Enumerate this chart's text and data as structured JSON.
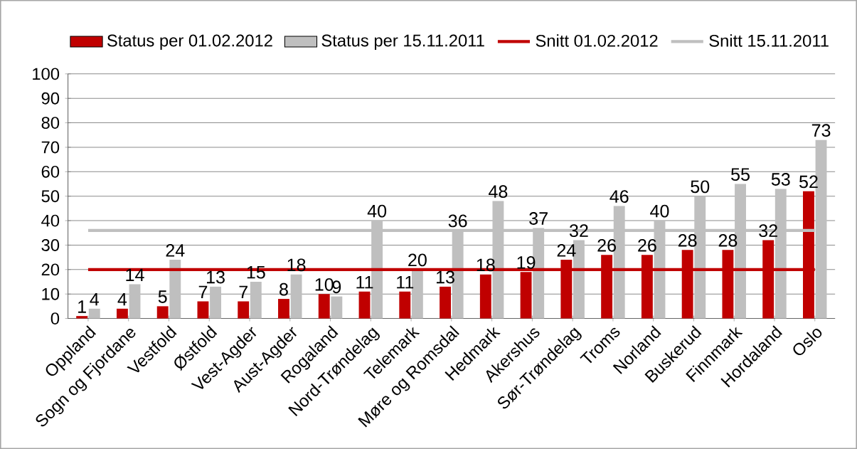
{
  "chart_data": {
    "type": "bar",
    "categories": [
      "Oppland",
      "Sogn og Fjordane",
      "Vestfold",
      "Østfold",
      "Vest-Agder",
      "Aust-Agder",
      "Rogaland",
      "Nord-Trøndelag",
      "Telemark",
      "Møre og Romsdal",
      "Hedmark",
      "Akershus",
      "Sør-Trøndelag",
      "Troms",
      "Norland",
      "Buskerud",
      "Finnmark",
      "Hordaland",
      "Oslo"
    ],
    "series": [
      {
        "name": "Status per 01.02.2012",
        "color": "#c00000",
        "values": [
          1,
          4,
          5,
          7,
          7,
          8,
          10,
          11,
          11,
          13,
          18,
          19,
          24,
          26,
          26,
          28,
          28,
          32,
          52
        ],
        "value_labels": [
          "1",
          "4",
          "5",
          "7",
          "7",
          "8",
          "10",
          "11",
          "11",
          "13",
          "18",
          "19",
          "24",
          "26",
          "26",
          "28",
          "28",
          "32",
          "52"
        ]
      },
      {
        "name": "Status per 15.11.2011",
        "color": "#bfbfbf",
        "values": [
          4,
          14,
          24,
          13,
          15,
          18,
          9,
          40,
          20,
          36,
          48,
          37,
          32,
          46,
          40,
          50,
          55,
          53,
          73
        ],
        "value_labels": [
          "4",
          "14",
          "24",
          "13",
          "15",
          "18",
          "9",
          "40",
          "20",
          "36",
          "48",
          "37",
          "32",
          "46",
          "40",
          "50",
          "55",
          "53",
          "73"
        ]
      },
      {
        "name": "Snitt 01.02.2012",
        "type": "line",
        "color": "#c00000",
        "values": [
          20,
          20,
          20,
          20,
          20,
          20,
          20,
          20,
          20,
          20,
          20,
          20,
          20,
          20,
          20,
          20,
          20,
          20,
          20
        ]
      },
      {
        "name": "Snitt 15.11.2011",
        "type": "line",
        "color": "#bfbfbf",
        "values": [
          36,
          36,
          36,
          36,
          36,
          36,
          36,
          36,
          36,
          36,
          36,
          36,
          36,
          36,
          36,
          36,
          36,
          36,
          36
        ]
      }
    ],
    "ylim": [
      0,
      100
    ],
    "yticks": [
      0,
      10,
      20,
      30,
      40,
      50,
      60,
      70,
      80,
      90,
      100
    ],
    "grid": "y",
    "legend": "top"
  }
}
